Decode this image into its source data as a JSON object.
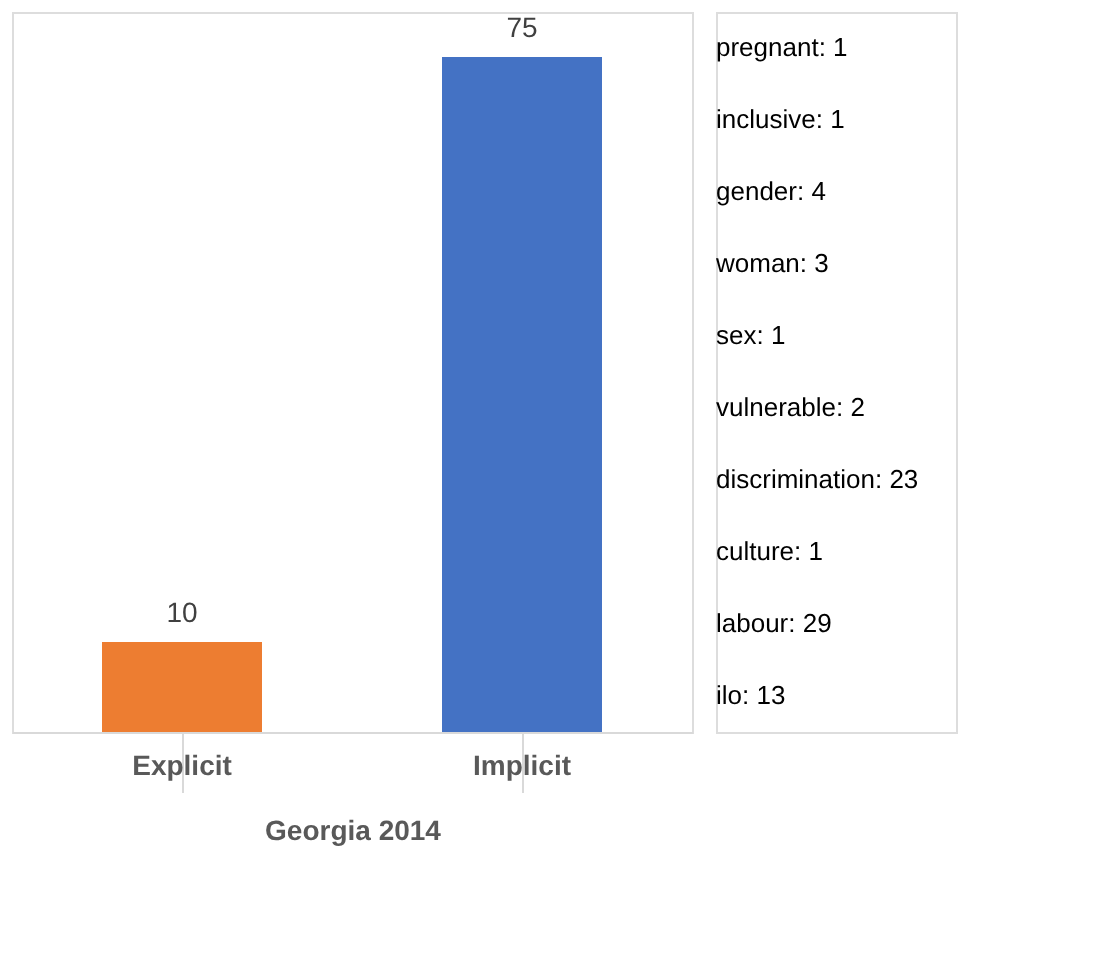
{
  "chart_data": {
    "type": "bar",
    "categories": [
      "Explicit",
      "Implicit"
    ],
    "values": [
      10,
      75
    ],
    "colors": [
      "#ed7d31",
      "#4472c4"
    ],
    "data_labels": true,
    "xlabel": "Georgia 2014",
    "grid": false,
    "annotations": [
      "pregnant: 1",
      "inclusive: 1",
      "gender: 4",
      "woman: 3",
      "sex: 1",
      "vulnerable: 2",
      "discrimination: 23",
      "culture: 1",
      "labour: 29",
      "ilo: 13"
    ]
  }
}
